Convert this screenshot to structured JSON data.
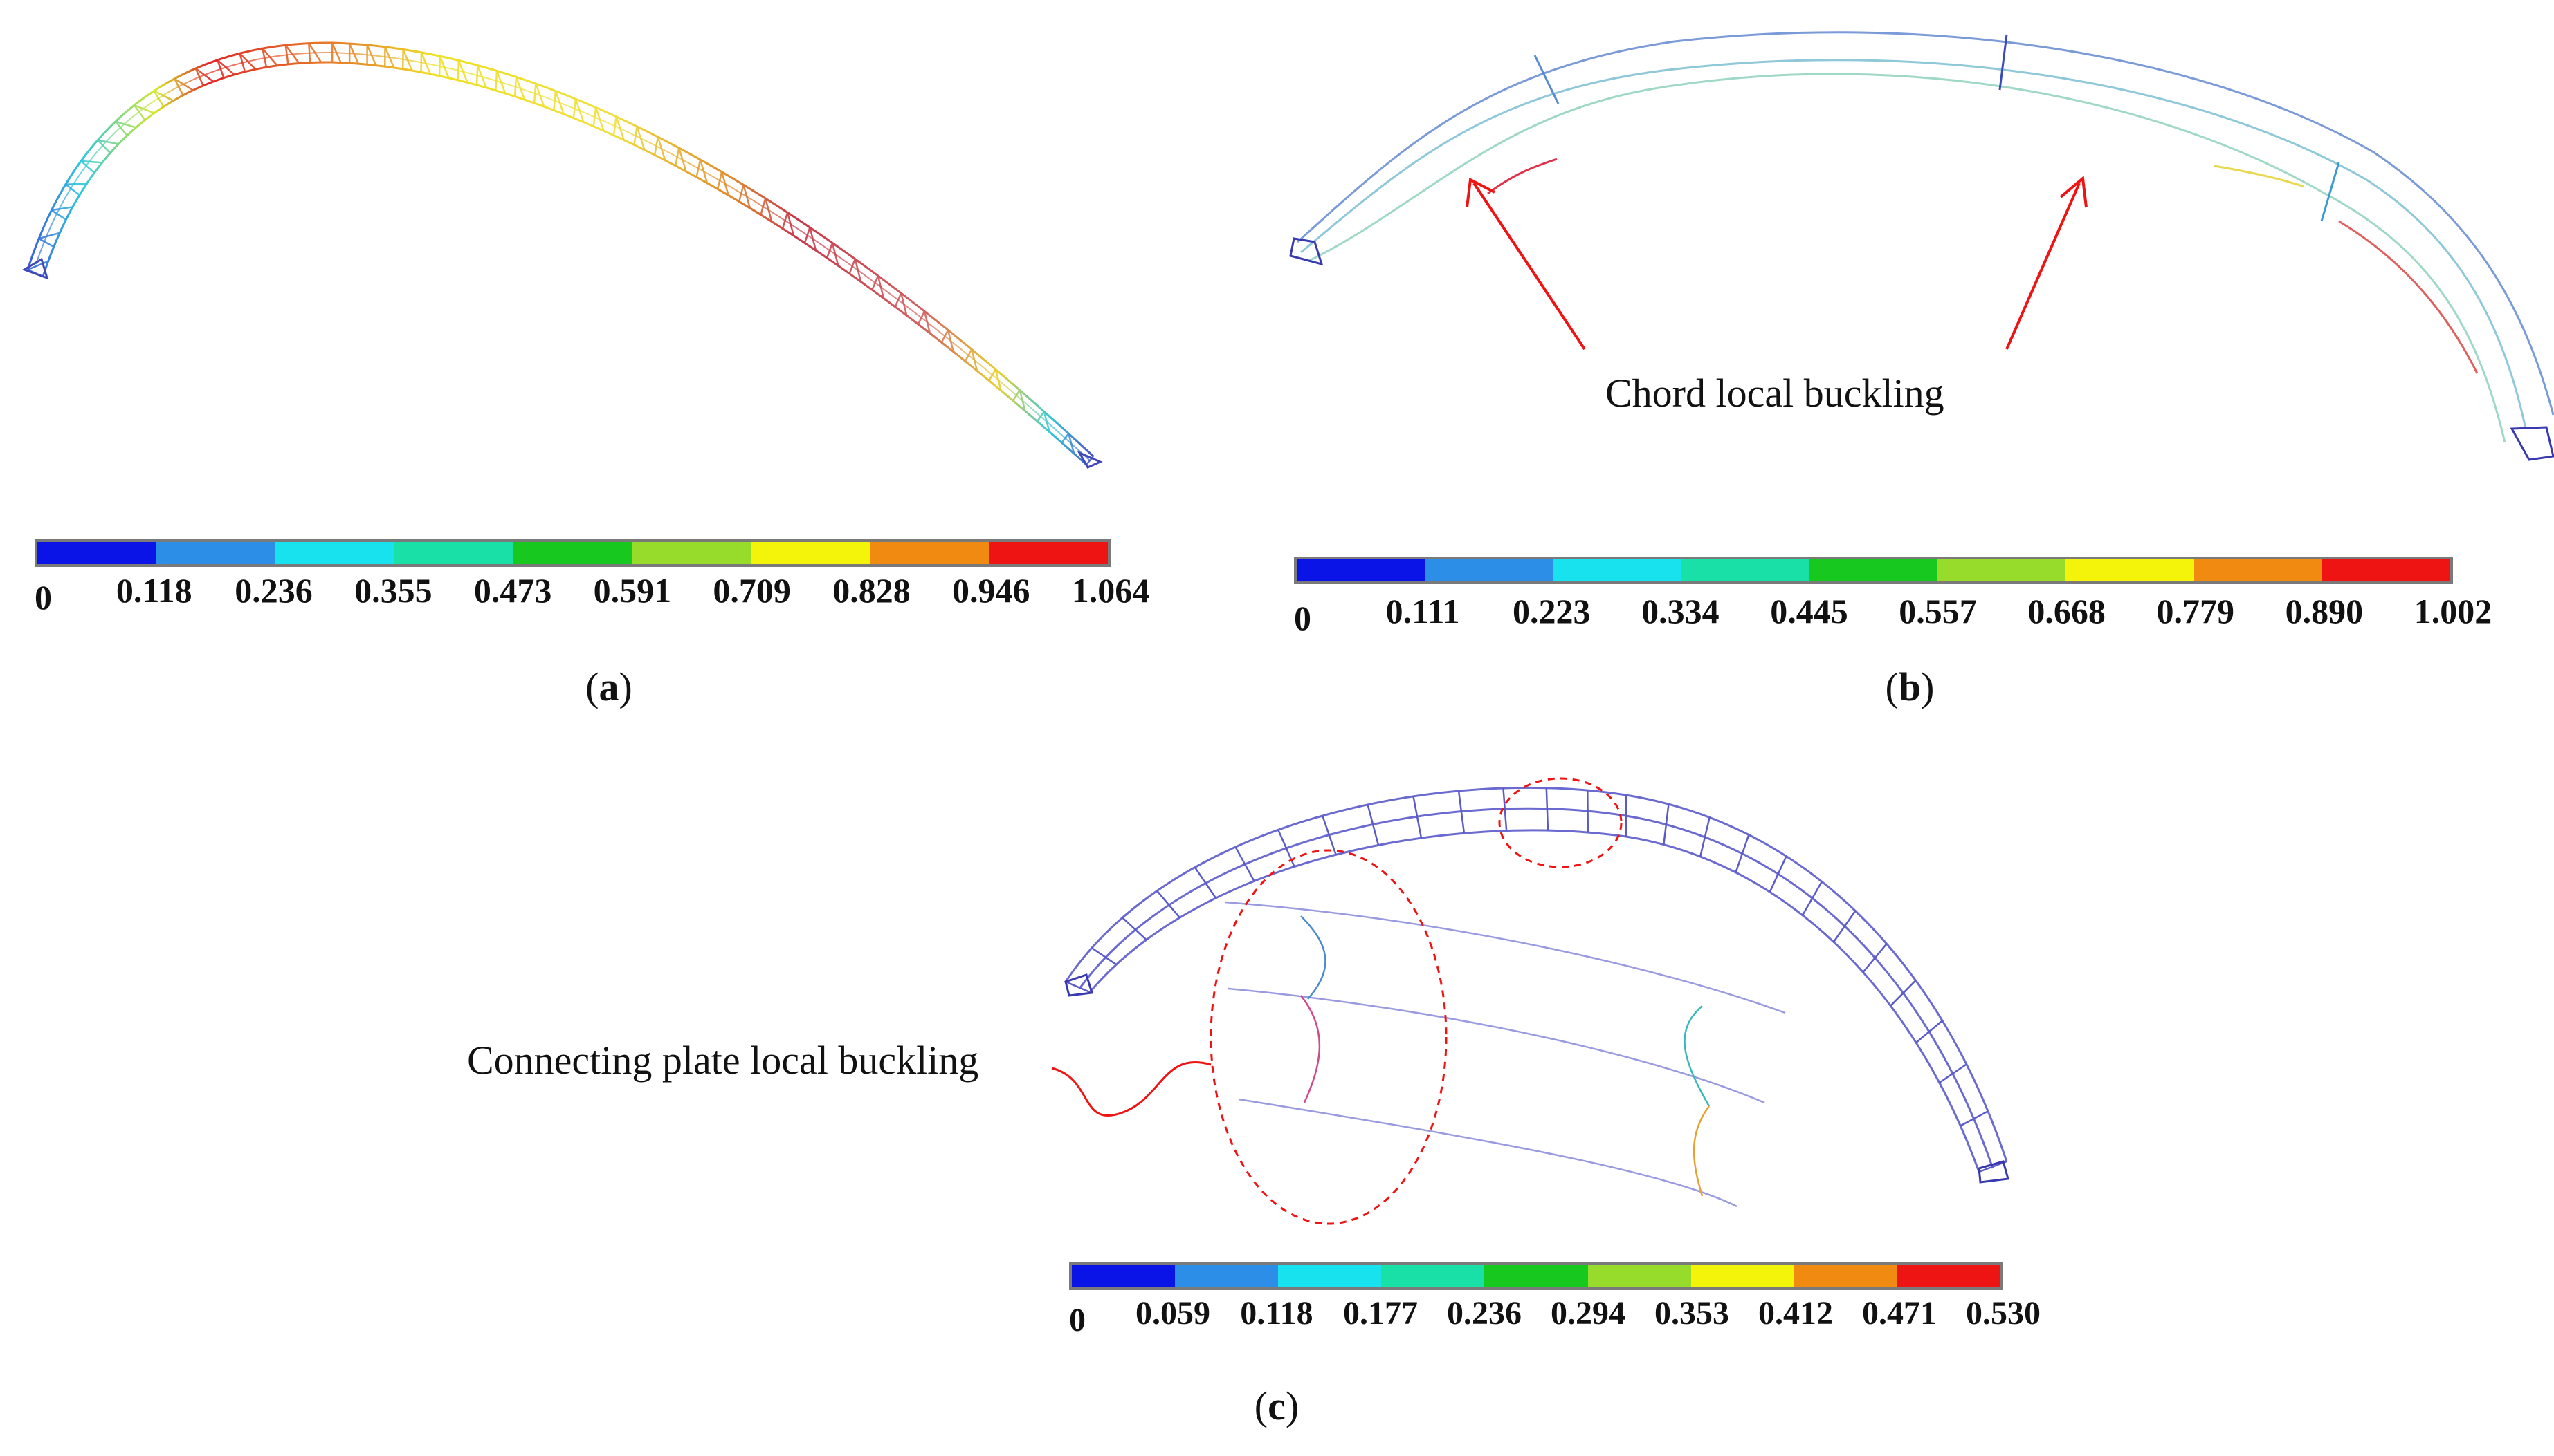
{
  "colorbar_colors": [
    "#0a14e6",
    "#2d8ee8",
    "#17e2ee",
    "#19e0a6",
    "#17c81f",
    "#97dc2b",
    "#f4f40a",
    "#f08a10",
    "#ee1414"
  ],
  "panels": {
    "a": {
      "caption_open": "(",
      "caption_letter": "a",
      "caption_close": ")",
      "scale": [
        "0",
        "0.118",
        "0.236",
        "0.355",
        "0.473",
        "0.591",
        "0.709",
        "0.828",
        "0.946",
        "1.064"
      ]
    },
    "b": {
      "caption_open": "(",
      "caption_letter": "b",
      "caption_close": ")",
      "annotation": "Chord local buckling",
      "scale": [
        "0",
        "0.111",
        "0.223",
        "0.334",
        "0.445",
        "0.557",
        "0.668",
        "0.779",
        "0.890",
        "1.002"
      ]
    },
    "c": {
      "caption_open": "(",
      "caption_letter": "c",
      "caption_close": ")",
      "annotation": "Connecting plate local buckling",
      "scale": [
        "0",
        "0.059",
        "0.118",
        "0.177",
        "0.236",
        "0.294",
        "0.353",
        "0.412",
        "0.471",
        "0.530"
      ]
    }
  }
}
